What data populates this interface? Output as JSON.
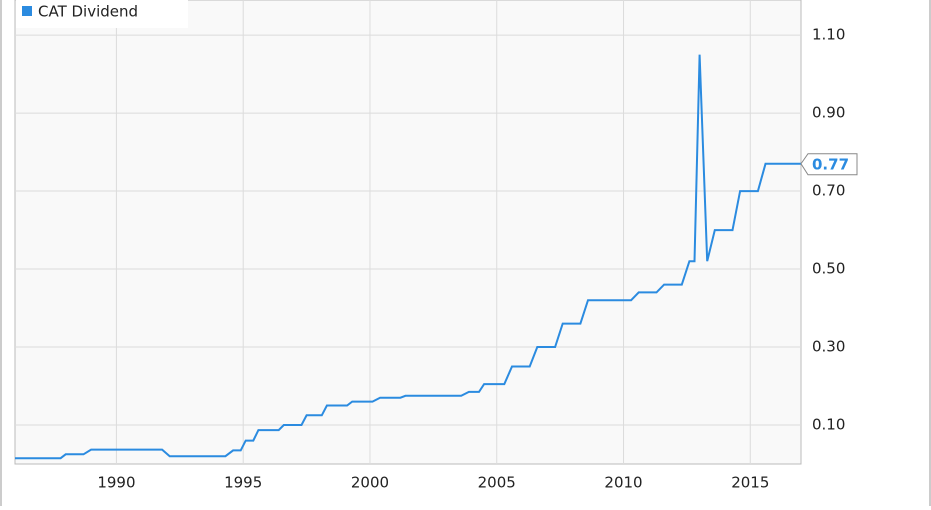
{
  "chart_data": {
    "type": "line",
    "x": [
      1986,
      1987.8,
      1988,
      1988.7,
      1989,
      1991.8,
      1992.1,
      1994.3,
      1994.6,
      1994.9,
      1995.1,
      1995.4,
      1995.6,
      1996.4,
      1996.6,
      1997.3,
      1997.5,
      1998.1,
      1998.3,
      1999.1,
      1999.3,
      2000.1,
      2000.4,
      2001.2,
      2001.4,
      2003.6,
      2003.9,
      2004.3,
      2004.5,
      2005.3,
      2005.6,
      2006.3,
      2006.6,
      2007.3,
      2007.6,
      2008.3,
      2008.6,
      2010.3,
      2010.6,
      2011.3,
      2011.6,
      2012.3,
      2012.6,
      2012.8,
      2013.0,
      2013.3,
      2013.6,
      2014.3,
      2014.6,
      2015.3,
      2015.6,
      2017
    ],
    "series": [
      {
        "name": "CAT Dividend",
        "color": "#2b8be0",
        "values": [
          0.015,
          0.015,
          0.025,
          0.025,
          0.037,
          0.037,
          0.02,
          0.02,
          0.035,
          0.035,
          0.06,
          0.06,
          0.087,
          0.087,
          0.1,
          0.1,
          0.125,
          0.125,
          0.15,
          0.15,
          0.16,
          0.16,
          0.17,
          0.17,
          0.175,
          0.175,
          0.185,
          0.185,
          0.205,
          0.205,
          0.25,
          0.25,
          0.3,
          0.3,
          0.36,
          0.36,
          0.42,
          0.42,
          0.44,
          0.44,
          0.46,
          0.46,
          0.52,
          0.52,
          1.05,
          0.52,
          0.6,
          0.6,
          0.7,
          0.7,
          0.77,
          0.77
        ]
      }
    ],
    "xlim": [
      1986,
      2017
    ],
    "xticks": [
      1990,
      1995,
      2000,
      2005,
      2010,
      2015
    ],
    "ylim": [
      0,
      1.19
    ],
    "yticks": [
      {
        "value": 0.1,
        "label": "0.10"
      },
      {
        "value": 0.3,
        "label": "0.30"
      },
      {
        "value": 0.5,
        "label": "0.50"
      },
      {
        "value": 0.7,
        "label": "0.70"
      },
      {
        "value": 0.9,
        "label": "0.90"
      },
      {
        "value": 1.1,
        "label": "1.10"
      }
    ],
    "grid": true,
    "legend": "top-left"
  }
}
